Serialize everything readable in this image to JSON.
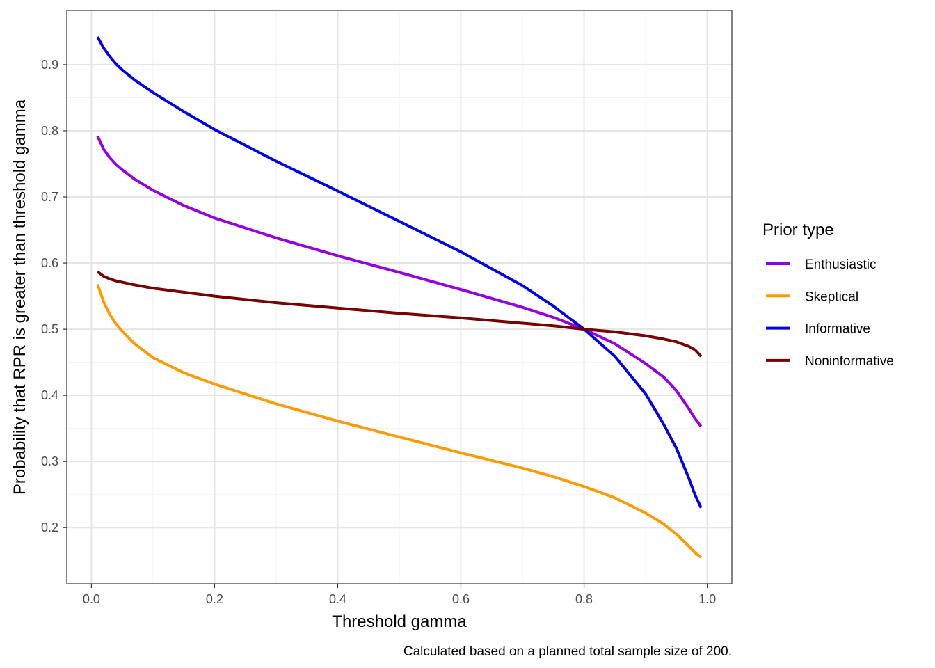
{
  "chart_data": {
    "type": "line",
    "xlabel": "Threshold gamma",
    "ylabel": "Probability that RPR is greater than threshold gamma",
    "caption": "Calculated based on a planned total sample size of 200.",
    "xlim": [
      -0.04,
      1.04
    ],
    "ylim": [
      0.115,
      0.982
    ],
    "xticks": [
      0.0,
      0.2,
      0.4,
      0.6,
      0.8,
      1.0
    ],
    "xtick_labels": [
      "0.0",
      "0.2",
      "0.4",
      "0.6",
      "0.8",
      "1.0"
    ],
    "yticks": [
      0.2,
      0.3,
      0.4,
      0.5,
      0.6,
      0.7,
      0.8,
      0.9
    ],
    "ytick_labels": [
      "0.2",
      "0.3",
      "0.4",
      "0.5",
      "0.6",
      "0.7",
      "0.8",
      "0.9"
    ],
    "grid": true,
    "legend": {
      "title": "Prior type",
      "position": "right"
    },
    "x": [
      0.01,
      0.02,
      0.03,
      0.04,
      0.05,
      0.07,
      0.1,
      0.15,
      0.2,
      0.3,
      0.4,
      0.5,
      0.6,
      0.7,
      0.75,
      0.8,
      0.85,
      0.9,
      0.93,
      0.95,
      0.97,
      0.98,
      0.99
    ],
    "series": [
      {
        "name": "Enthusiastic",
        "color": "#9400E0",
        "values": [
          0.792,
          0.772,
          0.759,
          0.749,
          0.741,
          0.727,
          0.71,
          0.687,
          0.668,
          0.638,
          0.611,
          0.586,
          0.56,
          0.533,
          0.518,
          0.5,
          0.478,
          0.448,
          0.427,
          0.407,
          0.38,
          0.365,
          0.353
        ]
      },
      {
        "name": "Skeptical",
        "color": "#FF9A00",
        "values": [
          0.568,
          0.541,
          0.522,
          0.508,
          0.497,
          0.478,
          0.457,
          0.434,
          0.417,
          0.387,
          0.361,
          0.337,
          0.313,
          0.29,
          0.277,
          0.262,
          0.245,
          0.222,
          0.205,
          0.19,
          0.172,
          0.162,
          0.155
        ]
      },
      {
        "name": "Informative",
        "color": "#0000EE",
        "values": [
          0.942,
          0.925,
          0.912,
          0.901,
          0.892,
          0.877,
          0.858,
          0.829,
          0.802,
          0.754,
          0.709,
          0.663,
          0.617,
          0.566,
          0.535,
          0.5,
          0.459,
          0.402,
          0.355,
          0.32,
          0.275,
          0.25,
          0.23
        ]
      },
      {
        "name": "Noninformative",
        "color": "#7A0000",
        "values": [
          0.587,
          0.58,
          0.576,
          0.573,
          0.571,
          0.567,
          0.562,
          0.556,
          0.55,
          0.54,
          0.532,
          0.524,
          0.517,
          0.509,
          0.505,
          0.5,
          0.496,
          0.49,
          0.485,
          0.481,
          0.474,
          0.469,
          0.459
        ]
      }
    ]
  }
}
